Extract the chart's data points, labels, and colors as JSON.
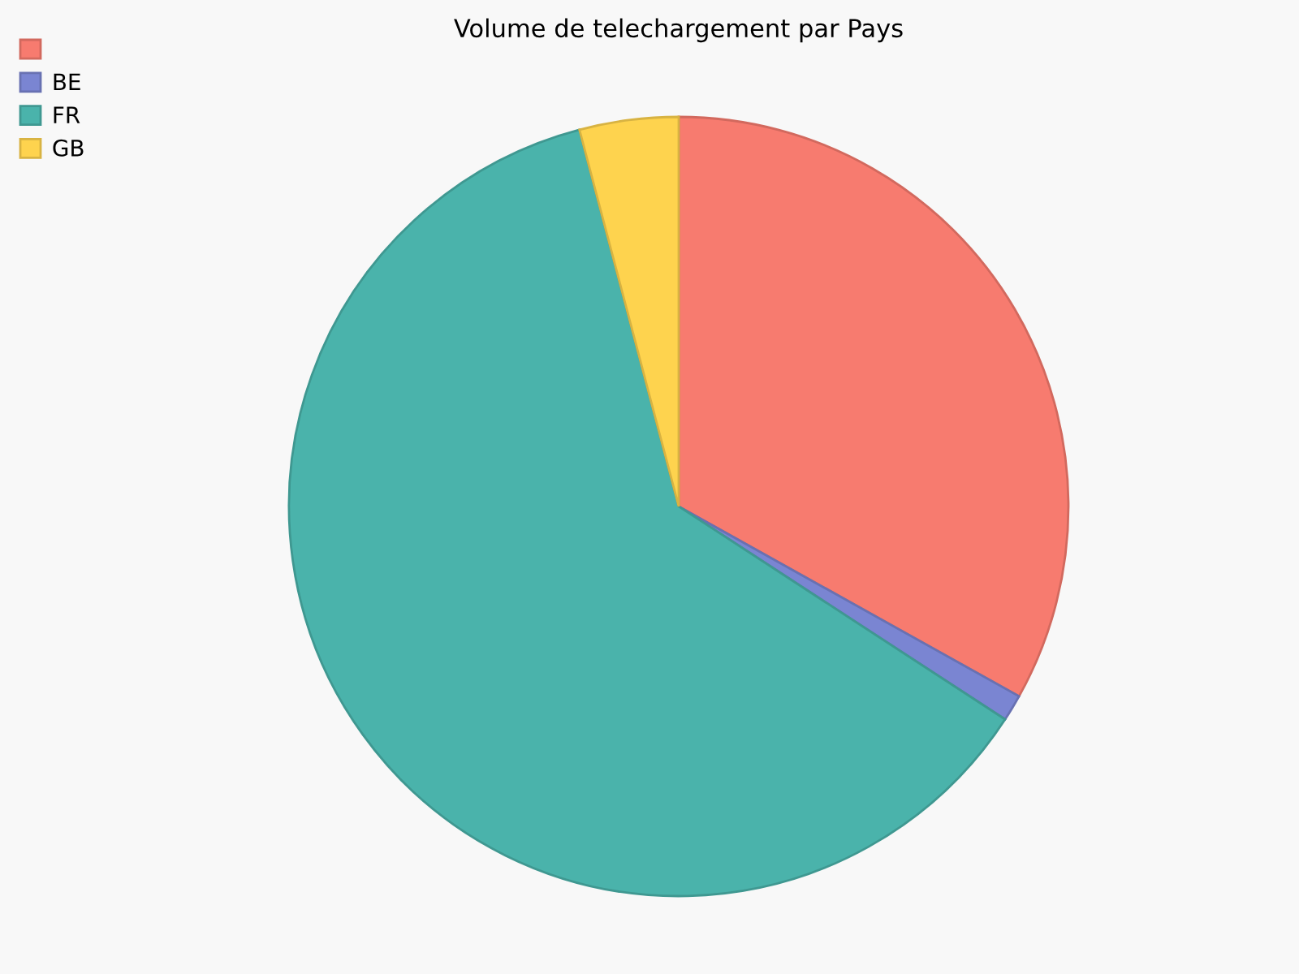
{
  "chart_data": {
    "type": "pie",
    "title": "Volume de telechargement par Pays",
    "categories": [
      null,
      "BE",
      "FR",
      "GB"
    ],
    "values": [
      33.1,
      1.1,
      61.7,
      4.1
    ],
    "colors": [
      "#f77b6f",
      "#7a85d2",
      "#4ab3ab",
      "#fed34e"
    ],
    "legend": "top left"
  }
}
